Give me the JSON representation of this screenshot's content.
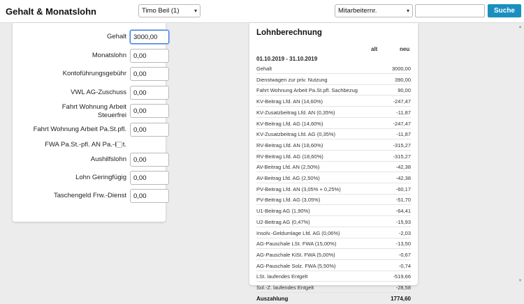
{
  "header": {
    "title": "Gehalt & Monatslohn",
    "employee_select": "Timo Beil (1)",
    "search_field_select": "Mitarbeiternr.",
    "search_value": "",
    "search_button": "Suche"
  },
  "form": {
    "fields": [
      {
        "label": "Gehalt",
        "value": "3000,00"
      },
      {
        "label": "Monatslohn",
        "value": "0,00"
      },
      {
        "label": "Kontoführungsgebühr",
        "value": "0,00"
      },
      {
        "label": "VWL AG-Zuschuss",
        "value": "0,00"
      },
      {
        "label": "Fahrt Wohnung Arbeit Steuerfrei",
        "value": "0,00"
      },
      {
        "label": "Fahrt Wohnung Arbeit Pa.St.pfl.",
        "value": "0,00"
      },
      {
        "label": "FWA Pa.St.-pfl. AN Pa.-LSt.",
        "checked": false
      },
      {
        "label": "Aushilfslohn",
        "value": "0,00"
      },
      {
        "label": "Lohn Geringfügig",
        "value": "0,00"
      },
      {
        "label": "Taschengeld Frw.-Dienst",
        "value": "0,00"
      }
    ]
  },
  "lohnberechnung": {
    "title": "Lohnberechnung",
    "col_alt": "alt",
    "col_neu": "neu",
    "period": "01.10.2019 - 31.10.2019",
    "rows": [
      {
        "label": "Gehalt",
        "value": "3000,00"
      },
      {
        "label": "Dienstwagen zur priv. Nutzung",
        "value": "390,00"
      },
      {
        "label": "Fahrt Wohnung Arbeit Pa.St.pfl. Sachbezug",
        "value": "90,00"
      },
      {
        "label": "KV-Beitrag Lfd. AN (14,60%)",
        "value": "-247,47"
      },
      {
        "label": "KV-Zusatzbeitrag Lfd. AN (0,35%)",
        "value": "-11,87"
      },
      {
        "label": "KV-Beitrag Lfd. AG (14,60%)",
        "value": "-247,47"
      },
      {
        "label": "KV-Zusatzbeitrag Lfd. AG (0,35%)",
        "value": "-11,87"
      },
      {
        "label": "RV-Beitrag Lfd. AN (18,60%)",
        "value": "-315,27"
      },
      {
        "label": "RV-Beitrag Lfd. AG (18,60%)",
        "value": "-315,27"
      },
      {
        "label": "AV-Beitrag Lfd. AN (2,50%)",
        "value": "-42,38"
      },
      {
        "label": "AV-Beitrag Lfd. AG (2,50%)",
        "value": "-42,38"
      },
      {
        "label": "PV-Beitrag Lfd. AN (3,05% + 0,25%)",
        "value": "-60,17"
      },
      {
        "label": "PV-Beitrag Lfd. AG (3,05%)",
        "value": "-51,70"
      },
      {
        "label": "U1-Beitrag AG (1,90%)",
        "value": "-64,41"
      },
      {
        "label": "U2-Beitrag AG (0,47%)",
        "value": "-15,93"
      },
      {
        "label": "Insolv.-Geldumlage Lfd. AG (0,06%)",
        "value": "-2,03"
      },
      {
        "label": "AG-Pauschale LSt. FWA (15,00%)",
        "value": "-13,50"
      },
      {
        "label": "AG-Pauschale KiSt. FWA (5,00%)",
        "value": "-0,67"
      },
      {
        "label": "AG-Pauschale Solz. FWA (5,50%)",
        "value": "-0,74"
      },
      {
        "label": "LSt. laufendes Entgelt",
        "value": "-519,66"
      },
      {
        "label": "Sol.-Z. laufendes Entgelt",
        "value": "-28,58"
      }
    ],
    "total": {
      "label": "Auszahlung",
      "value": "1774,60"
    }
  },
  "icons": {
    "chevron": "chevron-down-icon",
    "scroll_up": "scroll-up-icon",
    "scroll_down": "scroll-down-icon"
  },
  "colors": {
    "accent": "#1a8fbf",
    "focus": "#3b7be0",
    "background": "#ececec"
  }
}
